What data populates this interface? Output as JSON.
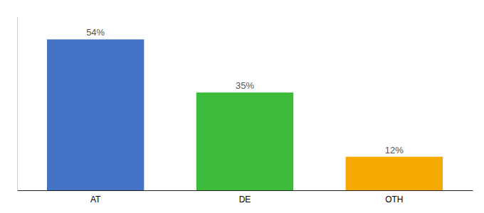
{
  "chart_data": {
    "type": "bar",
    "categories": [
      "AT",
      "DE",
      "OTH"
    ],
    "values": [
      54,
      35,
      12
    ],
    "value_labels": [
      "54%",
      "35%",
      "12%"
    ],
    "colors": [
      "#4472c4",
      "#3dbb3d",
      "#f5a800"
    ],
    "ylim": [
      0,
      62
    ],
    "data_labels": true,
    "tick_labels": "x",
    "grid": false
  }
}
